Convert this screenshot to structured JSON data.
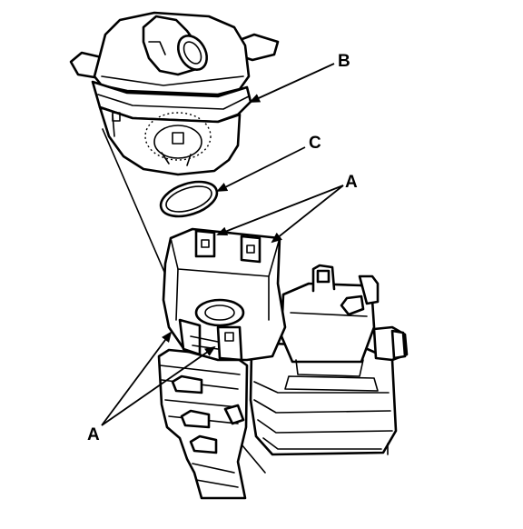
{
  "labels": {
    "b": "B",
    "c": "C",
    "a_upper": "A",
    "a_lower": "A"
  },
  "colors": {
    "line": "#000000",
    "background": "#ffffff"
  }
}
